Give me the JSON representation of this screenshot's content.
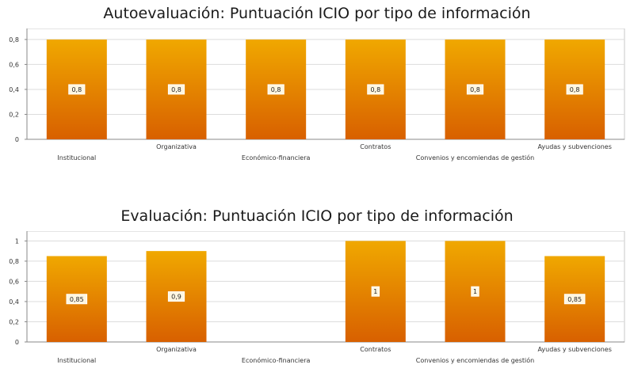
{
  "chart_data": [
    {
      "type": "bar",
      "title": "Autoevaluación: Puntuación ICIO por tipo de información",
      "categories": [
        "Institucional",
        "Organizativa",
        "Económico-financiera",
        "Contratos",
        "Convenios y encomiendas de gestión",
        "Ayudas y subvenciones"
      ],
      "values": [
        0.8,
        0.8,
        0.8,
        0.8,
        0.8,
        0.8
      ],
      "data_labels": [
        "0,8",
        "0,8",
        "0,8",
        "0,8",
        "0,8",
        "0,8"
      ],
      "y_ticks": [
        "0",
        "0,2",
        "0,4",
        "0,6",
        "0,8"
      ],
      "ylim": [
        0,
        0.85
      ],
      "grid": true,
      "bar_color_top": "#f0a800",
      "bar_color_bottom": "#d86000"
    },
    {
      "type": "bar",
      "title": "Evaluación: Puntuación ICIO por tipo de información",
      "categories": [
        "Institucional",
        "Organizativa",
        "Económico-financiera",
        "Contratos",
        "Convenios y encomiendas de gestión",
        "Ayudas y subvenciones"
      ],
      "values": [
        0.85,
        0.9,
        null,
        1,
        1,
        0.85
      ],
      "data_labels": [
        "0,85",
        "0,9",
        "",
        "1",
        "1",
        "0,85"
      ],
      "y_ticks": [
        "0",
        "0,2",
        "0,4",
        "0,6",
        "0,8",
        "1"
      ],
      "ylim": [
        0,
        1.05
      ],
      "grid": true,
      "bar_color_top": "#f0a800",
      "bar_color_bottom": "#d86000"
    }
  ]
}
